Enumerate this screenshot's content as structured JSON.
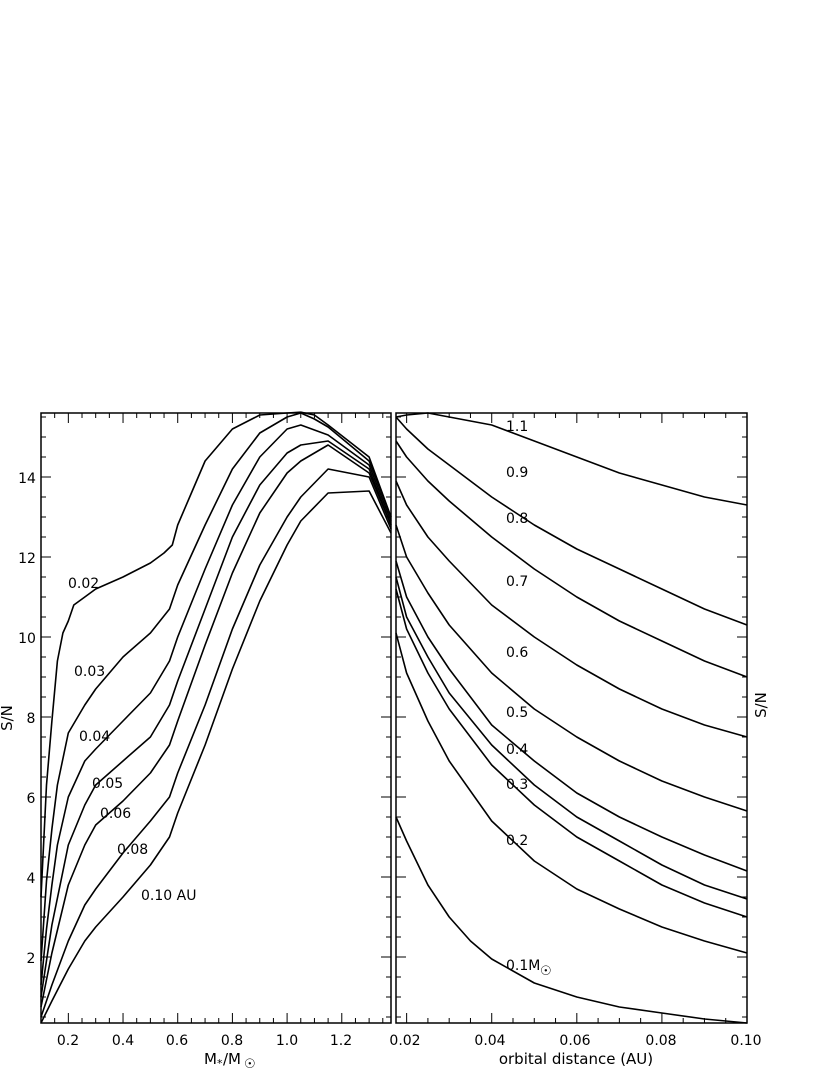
{
  "chart_data": [
    {
      "type": "line",
      "xlabel": "M*/M☉",
      "ylabel": "S/N",
      "xlim": [
        0.1,
        1.38
      ],
      "ylim": [
        0.35,
        15.6
      ],
      "xticks": [
        "0.2",
        "0.4",
        "0.6",
        "0.8",
        "1.0",
        "1.2"
      ],
      "yticks": [
        "2",
        "4",
        "6",
        "8",
        "10",
        "12",
        "14"
      ],
      "series": [
        {
          "name": "0.02",
          "points": [
            [
              0.1,
              3.5
            ],
            [
              0.12,
              6.3
            ],
            [
              0.14,
              7.9
            ],
            [
              0.16,
              9.4
            ],
            [
              0.18,
              10.1
            ],
            [
              0.2,
              10.4
            ],
            [
              0.22,
              10.8
            ],
            [
              0.26,
              11.0
            ],
            [
              0.3,
              11.2
            ],
            [
              0.4,
              11.5
            ],
            [
              0.5,
              11.85
            ],
            [
              0.55,
              12.1
            ],
            [
              0.58,
              12.3
            ],
            [
              0.6,
              12.8
            ],
            [
              0.65,
              13.6
            ],
            [
              0.7,
              14.4
            ],
            [
              0.8,
              15.2
            ],
            [
              0.9,
              15.55
            ],
            [
              1.0,
              15.6
            ],
            [
              1.05,
              15.62
            ],
            [
              1.1,
              15.55
            ],
            [
              1.15,
              15.3
            ],
            [
              1.3,
              14.5
            ],
            [
              1.38,
              13.0
            ]
          ],
          "label": "0.02"
        },
        {
          "name": "0.03",
          "points": [
            [
              0.1,
              1.9
            ],
            [
              0.12,
              3.9
            ],
            [
              0.14,
              5.2
            ],
            [
              0.16,
              6.3
            ],
            [
              0.2,
              7.6
            ],
            [
              0.26,
              8.3
            ],
            [
              0.3,
              8.7
            ],
            [
              0.4,
              9.5
            ],
            [
              0.5,
              10.1
            ],
            [
              0.57,
              10.7
            ],
            [
              0.6,
              11.3
            ],
            [
              0.7,
              12.8
            ],
            [
              0.8,
              14.2
            ],
            [
              0.9,
              15.1
            ],
            [
              1.0,
              15.5
            ],
            [
              1.05,
              15.6
            ],
            [
              1.1,
              15.45
            ],
            [
              1.15,
              15.25
            ],
            [
              1.3,
              14.4
            ],
            [
              1.38,
              13.0
            ]
          ],
          "label": "0.03"
        },
        {
          "name": "0.04",
          "points": [
            [
              0.1,
              1.3
            ],
            [
              0.12,
              2.7
            ],
            [
              0.14,
              3.8
            ],
            [
              0.16,
              4.8
            ],
            [
              0.2,
              6.0
            ],
            [
              0.26,
              6.9
            ],
            [
              0.3,
              7.2
            ],
            [
              0.4,
              7.9
            ],
            [
              0.5,
              8.6
            ],
            [
              0.57,
              9.4
            ],
            [
              0.6,
              10.0
            ],
            [
              0.7,
              11.7
            ],
            [
              0.8,
              13.3
            ],
            [
              0.9,
              14.5
            ],
            [
              1.0,
              15.2
            ],
            [
              1.05,
              15.3
            ],
            [
              1.15,
              15.05
            ],
            [
              1.3,
              14.3
            ],
            [
              1.38,
              12.9
            ]
          ],
          "label": "0.04"
        },
        {
          "name": "0.05",
          "points": [
            [
              0.1,
              1.0
            ],
            [
              0.14,
              2.8
            ],
            [
              0.2,
              4.8
            ],
            [
              0.26,
              5.8
            ],
            [
              0.3,
              6.3
            ],
            [
              0.4,
              6.9
            ],
            [
              0.5,
              7.5
            ],
            [
              0.57,
              8.3
            ],
            [
              0.6,
              8.9
            ],
            [
              0.7,
              10.7
            ],
            [
              0.8,
              12.5
            ],
            [
              0.9,
              13.8
            ],
            [
              1.0,
              14.6
            ],
            [
              1.05,
              14.8
            ],
            [
              1.15,
              14.9
            ],
            [
              1.3,
              14.2
            ],
            [
              1.38,
              12.8
            ]
          ],
          "label": "0.05"
        },
        {
          "name": "0.06",
          "points": [
            [
              0.1,
              0.75
            ],
            [
              0.14,
              2.1
            ],
            [
              0.2,
              3.8
            ],
            [
              0.26,
              4.8
            ],
            [
              0.3,
              5.3
            ],
            [
              0.4,
              5.9
            ],
            [
              0.5,
              6.6
            ],
            [
              0.57,
              7.3
            ],
            [
              0.6,
              7.9
            ],
            [
              0.7,
              9.8
            ],
            [
              0.8,
              11.6
            ],
            [
              0.9,
              13.1
            ],
            [
              1.0,
              14.1
            ],
            [
              1.05,
              14.4
            ],
            [
              1.15,
              14.8
            ],
            [
              1.3,
              14.1
            ],
            [
              1.38,
              12.8
            ]
          ],
          "label": "0.06"
        },
        {
          "name": "0.08",
          "points": [
            [
              0.1,
              0.5
            ],
            [
              0.14,
              1.3
            ],
            [
              0.2,
              2.4
            ],
            [
              0.26,
              3.3
            ],
            [
              0.3,
              3.7
            ],
            [
              0.4,
              4.6
            ],
            [
              0.5,
              5.4
            ],
            [
              0.57,
              6.0
            ],
            [
              0.6,
              6.6
            ],
            [
              0.7,
              8.3
            ],
            [
              0.8,
              10.2
            ],
            [
              0.9,
              11.8
            ],
            [
              1.0,
              13.0
            ],
            [
              1.05,
              13.5
            ],
            [
              1.15,
              14.2
            ],
            [
              1.3,
              14.0
            ],
            [
              1.38,
              12.7
            ]
          ],
          "label": "0.08"
        },
        {
          "name": "0.10 AU",
          "points": [
            [
              0.1,
              0.35
            ],
            [
              0.14,
              0.9
            ],
            [
              0.2,
              1.7
            ],
            [
              0.26,
              2.4
            ],
            [
              0.3,
              2.75
            ],
            [
              0.4,
              3.5
            ],
            [
              0.5,
              4.3
            ],
            [
              0.57,
              5.0
            ],
            [
              0.6,
              5.6
            ],
            [
              0.7,
              7.3
            ],
            [
              0.8,
              9.2
            ],
            [
              0.9,
              10.9
            ],
            [
              1.0,
              12.3
            ],
            [
              1.05,
              12.9
            ],
            [
              1.15,
              13.6
            ],
            [
              1.3,
              13.65
            ],
            [
              1.38,
              12.6
            ]
          ],
          "label": "0.10 AU"
        }
      ]
    },
    {
      "type": "line",
      "xlabel": "orbital distance (AU)",
      "ylabel": "S/N",
      "xlim": [
        0.0175,
        0.1
      ],
      "ylim": [
        0.35,
        15.6
      ],
      "xticks": [
        "0.02",
        "0.04",
        "0.06",
        "0.08",
        "0.10"
      ],
      "series": [
        {
          "name": "1.1",
          "points": [
            [
              0.0175,
              15.5
            ],
            [
              0.02,
              15.55
            ],
            [
              0.025,
              15.6
            ],
            [
              0.03,
              15.5
            ],
            [
              0.04,
              15.3
            ],
            [
              0.05,
              14.9
            ],
            [
              0.06,
              14.5
            ],
            [
              0.07,
              14.1
            ],
            [
              0.08,
              13.8
            ],
            [
              0.09,
              13.5
            ],
            [
              0.1,
              13.3
            ]
          ],
          "label": "1.1"
        },
        {
          "name": "0.9",
          "points": [
            [
              0.0175,
              15.5
            ],
            [
              0.02,
              15.2
            ],
            [
              0.025,
              14.7
            ],
            [
              0.03,
              14.3
            ],
            [
              0.04,
              13.5
            ],
            [
              0.05,
              12.8
            ],
            [
              0.06,
              12.2
            ],
            [
              0.07,
              11.7
            ],
            [
              0.08,
              11.2
            ],
            [
              0.09,
              10.7
            ],
            [
              0.1,
              10.3
            ]
          ],
          "label": "0.9"
        },
        {
          "name": "0.8",
          "points": [
            [
              0.0175,
              14.9
            ],
            [
              0.02,
              14.5
            ],
            [
              0.025,
              13.9
            ],
            [
              0.03,
              13.4
            ],
            [
              0.04,
              12.5
            ],
            [
              0.05,
              11.7
            ],
            [
              0.06,
              11.0
            ],
            [
              0.07,
              10.4
            ],
            [
              0.08,
              9.9
            ],
            [
              0.09,
              9.4
            ],
            [
              0.1,
              9.0
            ]
          ],
          "label": "0.8"
        },
        {
          "name": "0.7",
          "points": [
            [
              0.0175,
              13.9
            ],
            [
              0.02,
              13.3
            ],
            [
              0.025,
              12.5
            ],
            [
              0.03,
              11.9
            ],
            [
              0.04,
              10.8
            ],
            [
              0.05,
              10.0
            ],
            [
              0.06,
              9.3
            ],
            [
              0.07,
              8.7
            ],
            [
              0.08,
              8.2
            ],
            [
              0.09,
              7.8
            ],
            [
              0.1,
              7.5
            ]
          ],
          "label": "0.7"
        },
        {
          "name": "0.6",
          "points": [
            [
              0.0175,
              12.8
            ],
            [
              0.02,
              12.0
            ],
            [
              0.025,
              11.1
            ],
            [
              0.03,
              10.3
            ],
            [
              0.04,
              9.1
            ],
            [
              0.05,
              8.2
            ],
            [
              0.06,
              7.5
            ],
            [
              0.07,
              6.9
            ],
            [
              0.08,
              6.4
            ],
            [
              0.09,
              6.0
            ],
            [
              0.1,
              5.65
            ]
          ],
          "label": "0.6"
        },
        {
          "name": "0.5",
          "points": [
            [
              0.0175,
              11.9
            ],
            [
              0.02,
              11.0
            ],
            [
              0.025,
              10.0
            ],
            [
              0.03,
              9.2
            ],
            [
              0.04,
              7.8
            ],
            [
              0.05,
              6.9
            ],
            [
              0.06,
              6.1
            ],
            [
              0.07,
              5.5
            ],
            [
              0.08,
              5.0
            ],
            [
              0.09,
              4.55
            ],
            [
              0.1,
              4.15
            ]
          ],
          "label": "0.5"
        },
        {
          "name": "0.4",
          "points": [
            [
              0.0175,
              11.5
            ],
            [
              0.02,
              10.5
            ],
            [
              0.025,
              9.5
            ],
            [
              0.03,
              8.6
            ],
            [
              0.04,
              7.3
            ],
            [
              0.05,
              6.3
            ],
            [
              0.06,
              5.5
            ],
            [
              0.07,
              4.9
            ],
            [
              0.08,
              4.3
            ],
            [
              0.09,
              3.8
            ],
            [
              0.1,
              3.45
            ]
          ],
          "label": "0.4"
        },
        {
          "name": "0.3",
          "points": [
            [
              0.0175,
              11.2
            ],
            [
              0.02,
              10.2
            ],
            [
              0.025,
              9.1
            ],
            [
              0.03,
              8.2
            ],
            [
              0.04,
              6.8
            ],
            [
              0.05,
              5.8
            ],
            [
              0.06,
              5.0
            ],
            [
              0.07,
              4.4
            ],
            [
              0.08,
              3.8
            ],
            [
              0.09,
              3.35
            ],
            [
              0.1,
              3.0
            ]
          ],
          "label": "0.3"
        },
        {
          "name": "0.2",
          "points": [
            [
              0.0175,
              10.1
            ],
            [
              0.02,
              9.1
            ],
            [
              0.025,
              7.9
            ],
            [
              0.03,
              6.9
            ],
            [
              0.04,
              5.4
            ],
            [
              0.05,
              4.4
            ],
            [
              0.06,
              3.7
            ],
            [
              0.07,
              3.2
            ],
            [
              0.08,
              2.75
            ],
            [
              0.09,
              2.4
            ],
            [
              0.1,
              2.1
            ]
          ],
          "label": "0.2"
        },
        {
          "name": "0.1M☉",
          "points": [
            [
              0.0175,
              5.5
            ],
            [
              0.02,
              4.9
            ],
            [
              0.025,
              3.8
            ],
            [
              0.03,
              3.0
            ],
            [
              0.035,
              2.4
            ],
            [
              0.04,
              1.95
            ],
            [
              0.05,
              1.35
            ],
            [
              0.06,
              1.0
            ],
            [
              0.07,
              0.75
            ],
            [
              0.08,
              0.6
            ],
            [
              0.09,
              0.45
            ],
            [
              0.1,
              0.35
            ]
          ],
          "label": "0.1M☉"
        }
      ]
    }
  ],
  "labels": {
    "left_xlabel_main": "M",
    "left_xlabel_star": "*",
    "left_xlabel_slash": "/M",
    "sun_symbol": "☉",
    "right_xlabel": "orbital distance (AU)",
    "left_ylabel": "S/N",
    "right_ylabel": "S/N",
    "left_xticks": [
      "0.2",
      "0.4",
      "0.6",
      "0.8",
      "1.0",
      "1.2"
    ],
    "left_yticks": [
      "2",
      "4",
      "6",
      "8",
      "10",
      "12",
      "14"
    ],
    "right_xticks": [
      "0.02",
      "0.04",
      "0.06",
      "0.08",
      "0.10"
    ],
    "left_curve_labels": [
      "0.02",
      "0.03",
      "0.04",
      "0.05",
      "0.06",
      "0.08",
      "0.10 AU"
    ],
    "right_curve_labels": [
      "1.1",
      "0.9",
      "0.8",
      "0.7",
      "0.6",
      "0.5",
      "0.4",
      "0.3",
      "0.2",
      "0.1M"
    ]
  }
}
